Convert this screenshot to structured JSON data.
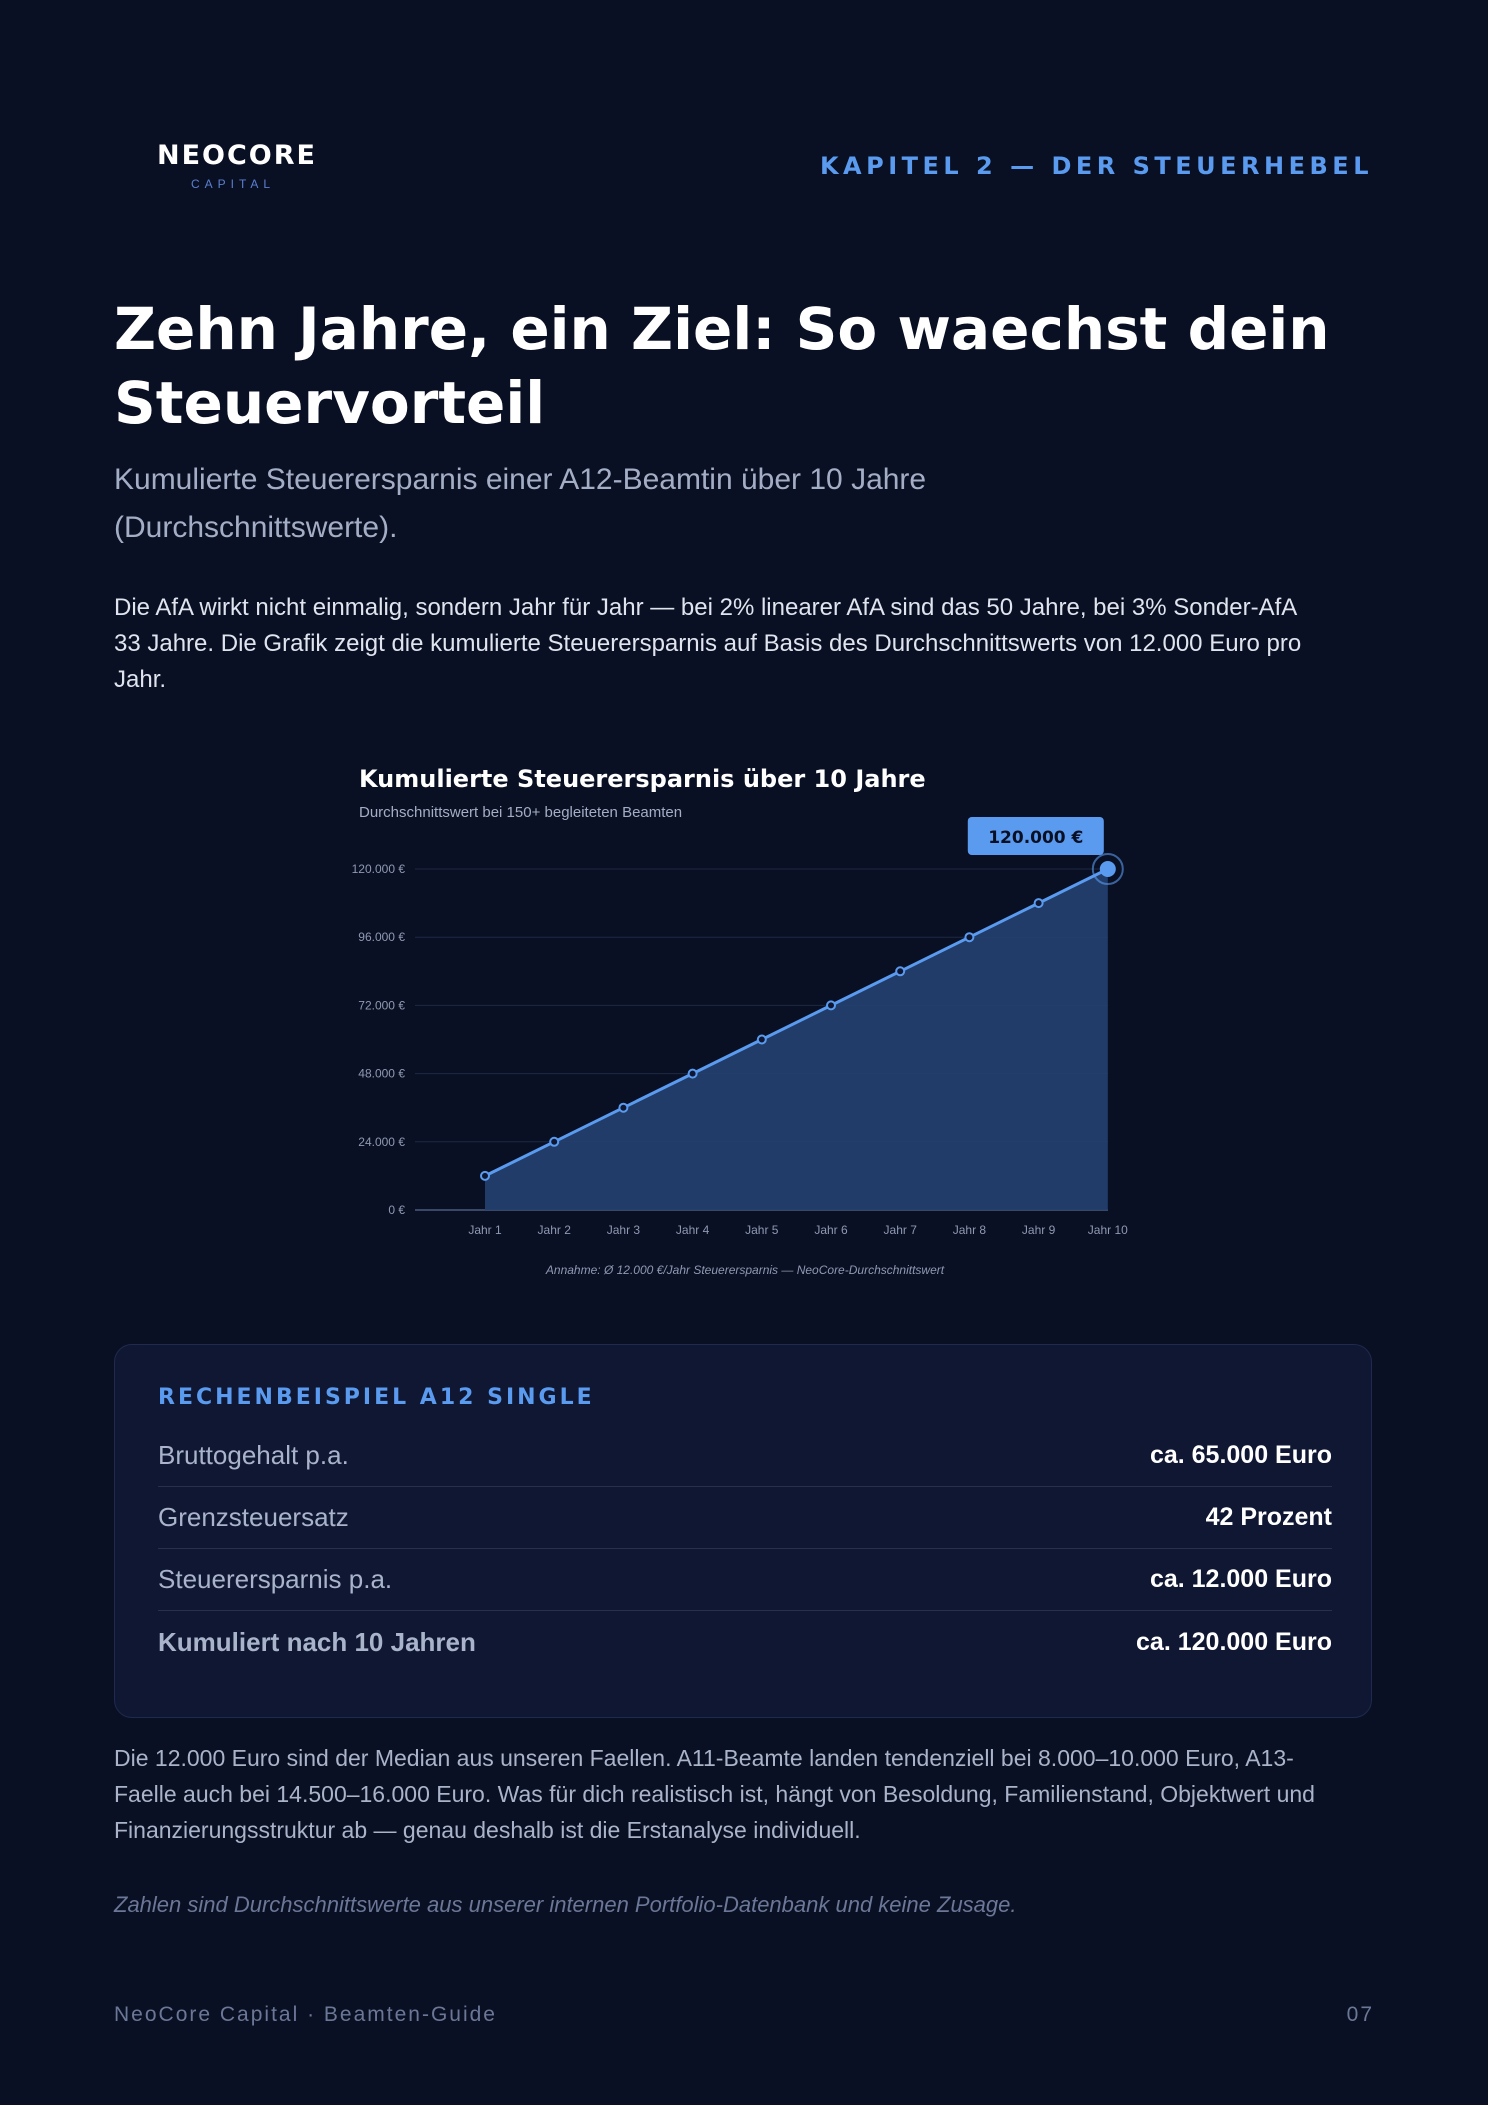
{
  "header": {
    "logo_main": "NEOCORE",
    "logo_sub": "CAPITAL",
    "chapter": "KAPITEL 2 — DER STEUERHEBEL"
  },
  "title": "Zehn Jahre, ein Ziel: So waechst dein Steuervorteil",
  "subtitle": "Kumulierte Steuerersparnis einer A12-Beamtin über 10 Jahre (Durchschnittswerte).",
  "intro": "Die AfA wirkt nicht einmalig, sondern Jahr für Jahr — bei 2% linearer AfA sind das 50 Jahre, bei 3% Sonder-AfA 33 Jahre. Die Grafik zeigt die kumulierte Steuerersparnis auf Basis des Durchschnittswerts von 12.000 Euro pro Jahr.",
  "chart_data": {
    "type": "area",
    "title": "Kumulierte Steuerersparnis über 10 Jahre",
    "subtitle": "Durchschnittswert bei 150+ begleiteten Beamten",
    "categories": [
      "Jahr 1",
      "Jahr 2",
      "Jahr 3",
      "Jahr 4",
      "Jahr 5",
      "Jahr 6",
      "Jahr 7",
      "Jahr 8",
      "Jahr 9",
      "Jahr 10"
    ],
    "values": [
      12000,
      24000,
      36000,
      48000,
      60000,
      72000,
      84000,
      96000,
      108000,
      120000
    ],
    "ylim": [
      0,
      120000
    ],
    "yticks": [
      0,
      24000,
      48000,
      72000,
      96000,
      120000
    ],
    "ytick_labels": [
      "0 €",
      "24.000 €",
      "48.000 €",
      "72.000 €",
      "96.000 €",
      "120.000 €"
    ],
    "callout": "120.000 €",
    "footnote": "Annahme: Ø 12.000 €/Jahr Steuerersparnis — NeoCore-Durchschnittswert",
    "grid": true,
    "line_color": "#5a9bf0",
    "fill_color": "#233f6e"
  },
  "card": {
    "title": "RECHENBEISPIEL A12 SINGLE",
    "rows": [
      {
        "label": "Bruttogehalt p.a.",
        "value": "ca. 65.000 Euro"
      },
      {
        "label": "Grenzsteuersatz",
        "value": "42 Prozent"
      },
      {
        "label": "Steuerersparnis p.a.",
        "value": "ca. 12.000 Euro"
      },
      {
        "label": "Kumuliert nach 10 Jahren",
        "value": "ca. 120.000 Euro"
      }
    ]
  },
  "note": "Die 12.000 Euro sind der Median aus unseren Faellen. A11-Beamte landen tendenziell bei 8.000–10.000 Euro, A13-Faelle auch bei 14.500–16.000 Euro. Was für dich realistisch ist, hängt von Besoldung, Familienstand, Objektwert und Finanzierungsstruktur ab — genau deshalb ist die Erstanalyse individuell.",
  "disclaimer": "Zahlen sind Durchschnittswerte aus unserer internen Portfolio-Datenbank und keine Zusage.",
  "footer": {
    "left": "NeoCore Capital · Beamten-Guide",
    "right": "07"
  }
}
